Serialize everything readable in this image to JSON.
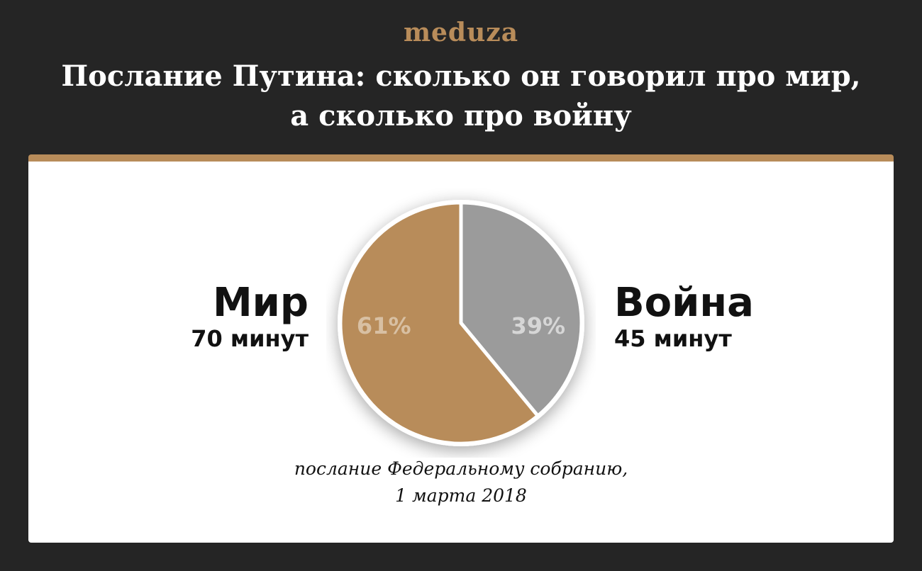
{
  "brand": {
    "logo_text": "meduza"
  },
  "header": {
    "title_line1": "Послание Путина: сколько он говорил про мир,",
    "title_line2": "а сколько про войну"
  },
  "caption": {
    "line1": "послание Федеральному собранию,",
    "line2": "1 марта 2018"
  },
  "colors": {
    "background": "#252525",
    "accent": "#b88c5a",
    "war_slice": "#9b9b9b",
    "card": "#ffffff"
  },
  "chart_data": {
    "type": "pie",
    "title": "Послание Путина: сколько он говорил про мир, а сколько про войну",
    "slices": [
      {
        "name": "Мир",
        "value": 70,
        "value_label": "70 минут",
        "percent": 61,
        "percent_label": "61%",
        "color": "#b88c5a"
      },
      {
        "name": "Война",
        "value": 45,
        "value_label": "45 минут",
        "percent": 39,
        "percent_label": "39%",
        "color": "#9b9b9b"
      }
    ]
  }
}
